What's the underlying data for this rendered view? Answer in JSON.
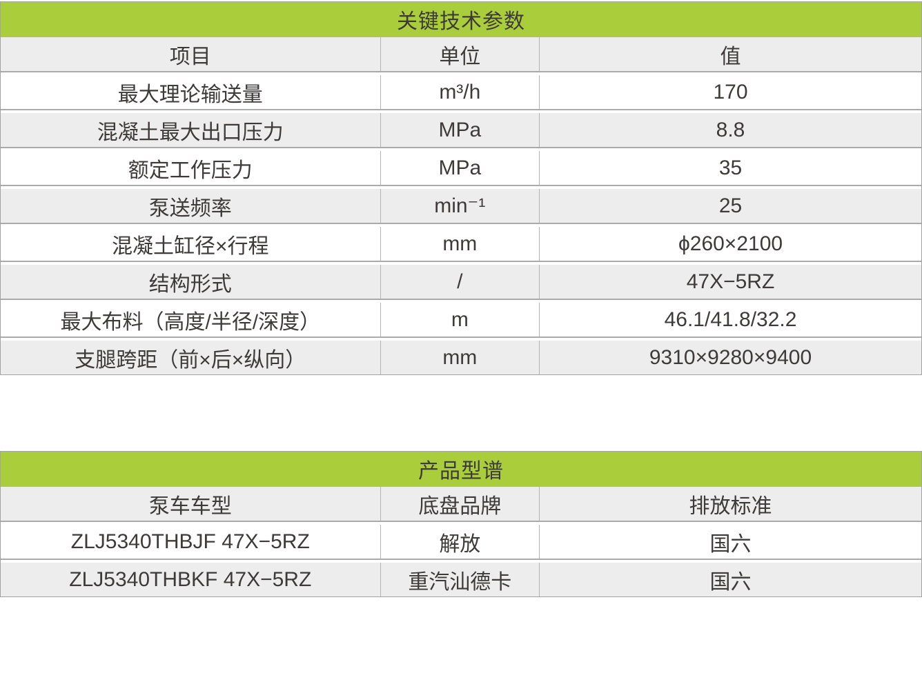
{
  "colors": {
    "header_green": "#aacd3c",
    "row_alt_gray": "#ededed",
    "row_white": "#ffffff",
    "border_gray": "#aaaaaa",
    "text": "#3e3a39"
  },
  "tables": [
    {
      "title": "关键技术参数",
      "columns": [
        "项目",
        "单位",
        "值"
      ],
      "rows": [
        [
          "最大理论输送量",
          "m³/h",
          "170"
        ],
        [
          "混凝土最大出口压力",
          "MPa",
          "8.8"
        ],
        [
          "额定工作压力",
          "MPa",
          "35"
        ],
        [
          "泵送频率",
          "min⁻¹",
          "25"
        ],
        [
          "混凝土缸径×行程",
          "mm",
          "ϕ260×2100"
        ],
        [
          "结构形式",
          "/",
          "47X−5RZ"
        ],
        [
          "最大布料（高度/半径/深度）",
          "m",
          "46.1/41.8/32.2"
        ],
        [
          "支腿跨距（前×后×纵向）",
          "mm",
          "9310×9280×9400"
        ]
      ]
    },
    {
      "title": "产品型谱",
      "columns": [
        "泵车车型",
        "底盘品牌",
        "排放标准"
      ],
      "rows": [
        [
          "ZLJ5340THBJF 47X−5RZ",
          "解放",
          "国六"
        ],
        [
          "ZLJ5340THBKF 47X−5RZ",
          "重汽汕德卡",
          "国六"
        ]
      ]
    }
  ]
}
